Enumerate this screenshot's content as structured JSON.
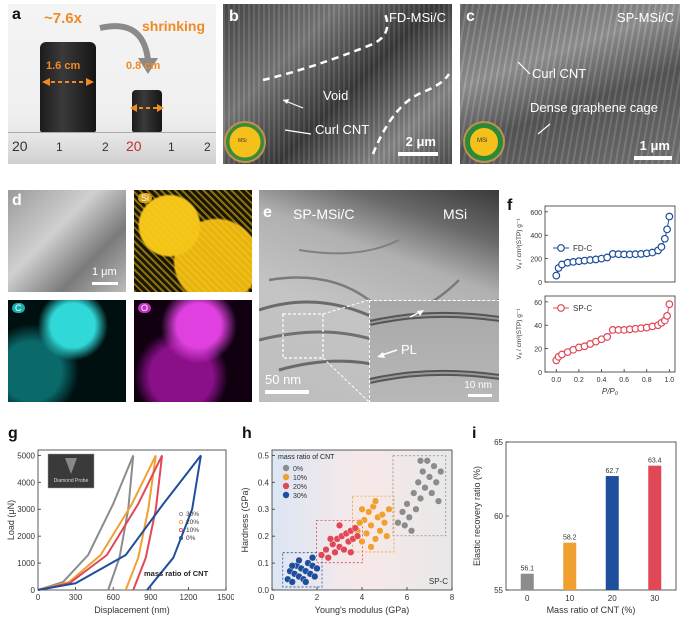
{
  "panels": {
    "a": {
      "label": "a",
      "ratio": "~7.6x",
      "shrink": "shrinking",
      "big_size": "1.6 cm",
      "small_size": "0.8 cm",
      "ruler_labels": [
        "20",
        "1",
        "2",
        "20",
        "1",
        "2"
      ]
    },
    "b": {
      "label": "b",
      "title": "FD-MSi/C",
      "void": "Void",
      "curl": "Curl CNT",
      "scale": "2 μm",
      "inset": "MSi"
    },
    "c": {
      "label": "c",
      "title": "SP-MSi/C",
      "curl": "Curl CNT",
      "cage": "Dense graphene cage",
      "scale": "1 μm",
      "inset": "MSi"
    },
    "d": {
      "label": "d",
      "scale": "1 μm",
      "si": "Si",
      "c": "C",
      "o": "O"
    },
    "e": {
      "label": "e",
      "title": "SP-MSi/C",
      "msi": "MSi",
      "pl": "PL",
      "scale": "50 nm",
      "inset_scale": "10 nm"
    },
    "g": {
      "label": "g",
      "legend_title": "mass ratio of CNT",
      "inset_text": "Diamond Probe"
    },
    "h": {
      "label": "h",
      "legend_title": "mass ratio of CNT",
      "corner": "SP-C"
    },
    "i": {
      "label": "i"
    },
    "f": {
      "label": "f"
    }
  },
  "colors": {
    "gray": "#8c8c8c",
    "orange": "#f0a030",
    "red": "#e04858",
    "blue": "#1f4e9c"
  },
  "chart_data": [
    {
      "id": "f",
      "type": "line",
      "xlabel": "P/P₀",
      "xlim": [
        -0.1,
        1.05
      ],
      "xticks": [
        "0.0",
        "0.2",
        "0.4",
        "0.6",
        "0.8",
        "1.0"
      ],
      "top": {
        "ylabel": "Vₐ / cm³(STP) g⁻¹",
        "ylim": [
          0,
          650
        ],
        "yticks": [
          "0",
          "200",
          "400",
          "600"
        ],
        "series": [
          {
            "name": "FD-C",
            "color": "#1f4e9c",
            "x": [
              0.0,
              0.02,
              0.05,
              0.1,
              0.15,
              0.2,
              0.25,
              0.3,
              0.35,
              0.4,
              0.45,
              0.5,
              0.55,
              0.6,
              0.65,
              0.7,
              0.75,
              0.8,
              0.85,
              0.9,
              0.93,
              0.96,
              0.98,
              1.0
            ],
            "y": [
              55,
              120,
              150,
              165,
              172,
              178,
              183,
              188,
              193,
              200,
              210,
              240,
              238,
              236,
              236,
              238,
              240,
              245,
              252,
              270,
              300,
              370,
              450,
              560
            ]
          }
        ]
      },
      "bottom": {
        "ylabel": "Vₐ / cm³(STP) g⁻¹",
        "ylim": [
          0,
          65
        ],
        "yticks": [
          "0",
          "20",
          "40",
          "60"
        ],
        "series": [
          {
            "name": "SP-C",
            "color": "#e04858",
            "x": [
              0.0,
              0.02,
              0.05,
              0.1,
              0.15,
              0.2,
              0.25,
              0.3,
              0.35,
              0.4,
              0.45,
              0.5,
              0.55,
              0.6,
              0.65,
              0.7,
              0.75,
              0.8,
              0.85,
              0.9,
              0.93,
              0.96,
              0.98,
              1.0
            ],
            "y": [
              10,
              13,
              15,
              17,
              19,
              21,
              22,
              24,
              26,
              28,
              30,
              36,
              36,
              36,
              36.5,
              37,
              37.5,
              38,
              39,
              40,
              42,
              44,
              48,
              58
            ]
          }
        ]
      }
    },
    {
      "id": "g",
      "type": "line",
      "xlabel": "Displacement (nm)",
      "ylabel": "Load (μN)",
      "xlim": [
        0,
        1500
      ],
      "ylim": [
        0,
        5200
      ],
      "xticks": [
        "0",
        "300",
        "600",
        "900",
        "1200",
        "1500"
      ],
      "yticks": [
        "0",
        "1000",
        "2000",
        "3000",
        "4000",
        "5000"
      ],
      "series": [
        {
          "name": "30%",
          "color": "#8c8c8c",
          "load": [
            [
              0,
              0
            ],
            [
              200,
              300
            ],
            [
              400,
              1300
            ],
            [
              600,
              3200
            ],
            [
              760,
              5000
            ]
          ],
          "unload": [
            [
              760,
              5000
            ],
            [
              720,
              3000
            ],
            [
              650,
              1200
            ],
            [
              560,
              0
            ]
          ]
        },
        {
          "name": "20%",
          "color": "#f0a030",
          "load": [
            [
              0,
              0
            ],
            [
              250,
              300
            ],
            [
              500,
              1300
            ],
            [
              750,
              3200
            ],
            [
              940,
              5000
            ]
          ],
          "unload": [
            [
              940,
              5000
            ],
            [
              880,
              3000
            ],
            [
              800,
              1200
            ],
            [
              700,
              0
            ]
          ]
        },
        {
          "name": "10%",
          "color": "#e04858",
          "load": [
            [
              0,
              0
            ],
            [
              250,
              250
            ],
            [
              550,
              1300
            ],
            [
              800,
              3200
            ],
            [
              990,
              5000
            ]
          ],
          "unload": [
            [
              990,
              5000
            ],
            [
              940,
              3000
            ],
            [
              860,
              1200
            ],
            [
              760,
              0
            ]
          ]
        },
        {
          "name": "0%",
          "color": "#1f4e9c",
          "load": [
            [
              0,
              0
            ],
            [
              300,
              250
            ],
            [
              700,
              1300
            ],
            [
              1000,
              3200
            ],
            [
              1300,
              5000
            ]
          ],
          "unload": [
            [
              1300,
              5000
            ],
            [
              1230,
              3000
            ],
            [
              1080,
              1200
            ],
            [
              870,
              0
            ]
          ]
        }
      ]
    },
    {
      "id": "h",
      "type": "scatter",
      "xlabel": "Young's modulus (GPa)",
      "ylabel": "Hardness (GPa)",
      "xlim": [
        0,
        8
      ],
      "ylim": [
        0,
        0.52
      ],
      "xticks": [
        "0",
        "2",
        "4",
        "6",
        "8"
      ],
      "yticks": [
        "0.0",
        "0.1",
        "0.2",
        "0.3",
        "0.4",
        "0.5"
      ],
      "series": [
        {
          "name": "0%",
          "color": "#8c8c8c",
          "points": [
            [
              5.6,
              0.25
            ],
            [
              5.8,
              0.29
            ],
            [
              6.0,
              0.32
            ],
            [
              6.1,
              0.27
            ],
            [
              6.3,
              0.36
            ],
            [
              6.4,
              0.3
            ],
            [
              6.5,
              0.4
            ],
            [
              6.6,
              0.34
            ],
            [
              6.7,
              0.44
            ],
            [
              6.8,
              0.38
            ],
            [
              6.9,
              0.48
            ],
            [
              7.0,
              0.42
            ],
            [
              7.1,
              0.36
            ],
            [
              7.2,
              0.46
            ],
            [
              7.3,
              0.4
            ],
            [
              7.4,
              0.33
            ],
            [
              6.2,
              0.22
            ],
            [
              5.9,
              0.24
            ],
            [
              7.5,
              0.44
            ],
            [
              6.6,
              0.48
            ]
          ]
        },
        {
          "name": "10%",
          "color": "#f0a030",
          "points": [
            [
              3.8,
              0.22
            ],
            [
              4.0,
              0.18
            ],
            [
              4.1,
              0.26
            ],
            [
              4.2,
              0.21
            ],
            [
              4.3,
              0.29
            ],
            [
              4.4,
              0.24
            ],
            [
              4.5,
              0.31
            ],
            [
              4.6,
              0.19
            ],
            [
              4.7,
              0.27
            ],
            [
              4.8,
              0.22
            ],
            [
              4.9,
              0.28
            ],
            [
              5.0,
              0.25
            ],
            [
              5.2,
              0.3
            ],
            [
              4.4,
              0.16
            ],
            [
              4.0,
              0.3
            ],
            [
              5.1,
              0.2
            ],
            [
              3.9,
              0.25
            ],
            [
              4.6,
              0.33
            ]
          ]
        },
        {
          "name": "20%",
          "color": "#e04858",
          "points": [
            [
              2.2,
              0.13
            ],
            [
              2.4,
              0.15
            ],
            [
              2.5,
              0.12
            ],
            [
              2.7,
              0.17
            ],
            [
              2.8,
              0.14
            ],
            [
              2.9,
              0.19
            ],
            [
              3.0,
              0.16
            ],
            [
              3.1,
              0.2
            ],
            [
              3.2,
              0.15
            ],
            [
              3.3,
              0.21
            ],
            [
              3.4,
              0.18
            ],
            [
              3.5,
              0.22
            ],
            [
              3.6,
              0.19
            ],
            [
              3.7,
              0.23
            ],
            [
              3.8,
              0.2
            ],
            [
              2.6,
              0.19
            ],
            [
              3.0,
              0.24
            ],
            [
              3.5,
              0.14
            ]
          ]
        },
        {
          "name": "30%",
          "color": "#1f4e9c",
          "points": [
            [
              0.7,
              0.04
            ],
            [
              0.8,
              0.07
            ],
            [
              0.9,
              0.03
            ],
            [
              1.0,
              0.06
            ],
            [
              1.1,
              0.09
            ],
            [
              1.2,
              0.05
            ],
            [
              1.3,
              0.08
            ],
            [
              1.4,
              0.04
            ],
            [
              1.5,
              0.07
            ],
            [
              1.6,
              0.1
            ],
            [
              1.7,
              0.06
            ],
            [
              1.8,
              0.09
            ],
            [
              1.9,
              0.05
            ],
            [
              2.0,
              0.08
            ],
            [
              1.2,
              0.11
            ],
            [
              1.5,
              0.03
            ],
            [
              0.9,
              0.09
            ],
            [
              1.8,
              0.12
            ]
          ]
        }
      ]
    },
    {
      "id": "i",
      "type": "bar",
      "xlabel": "Mass ratio of CNT (%)",
      "ylabel": "Elastic recovery ratio (%)",
      "ylim": [
        55,
        65
      ],
      "yticks": [
        "55",
        "60",
        "65"
      ],
      "categories": [
        "0",
        "10",
        "20",
        "30"
      ],
      "values": [
        56.1,
        58.2,
        62.7,
        63.4
      ],
      "value_labels": [
        "56.1",
        "58.2",
        "62.7",
        "63.4"
      ],
      "colors": [
        "#8c8c8c",
        "#f0a030",
        "#1f4e9c",
        "#e04858"
      ]
    }
  ]
}
